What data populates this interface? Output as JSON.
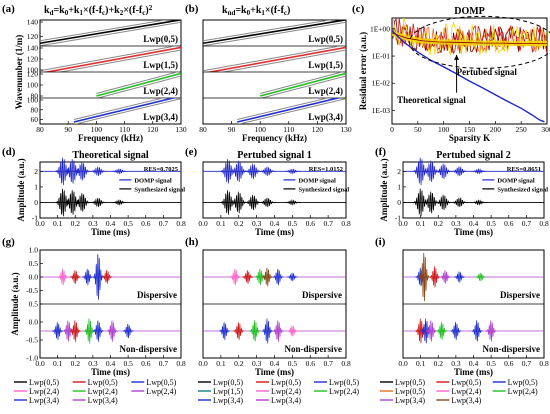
{
  "panel_labels": {
    "a": "(a)",
    "b": "(b)",
    "c": "(c)",
    "d": "(d)",
    "e": "(e)",
    "f": "(f)",
    "g": "(g)",
    "h": "(h)",
    "i": "(i)"
  },
  "colors": {
    "Lwp(0,5)": "#000000",
    "Lwp(1,5)": "#e03030",
    "Lwp(2,4)": "#22c022",
    "Lwp(3,4)": "#2030d0",
    "dispersion_band": "#888888",
    "theoretical_curve": "#2026c8",
    "dashed_ellipse": "#000000",
    "perturbed_band": "#f5d600",
    "residual_orange": "#e07020",
    "residual_darkred": "#8b0000",
    "dispersive_red": "#d01818",
    "dispersive_purple": "#b040d0",
    "dispersive_pink": "#ff66cc",
    "dispersive_brown": "#8b4513",
    "dispersive_teal": "#108080"
  },
  "chart_data": [
    {
      "id": "a",
      "type": "line",
      "title": "k_d=k_0+k_1×(f-f_c)+k_2×(f-f_c)^2",
      "xlabel": "Frequency (kHz)",
      "ylabel": "Wavenumber (1/m)",
      "xlim": [
        80,
        130
      ],
      "xticks": [
        80,
        90,
        100,
        110,
        120,
        130
      ],
      "subplots": [
        {
          "label": "Lwp(0,5)",
          "ylim": [
            110,
            140
          ],
          "yticks": [
            120,
            140
          ],
          "color": "#000000",
          "x": [
            80,
            130
          ],
          "y": [
            111,
            143
          ]
        },
        {
          "label": "Lwp(1,5)",
          "ylim": [
            100,
            140
          ],
          "yticks": [
            100,
            120,
            140
          ],
          "color": "#e03030",
          "x": [
            80,
            130
          ],
          "y": [
            94,
            141
          ]
        },
        {
          "label": "Lwp(2,4)",
          "ylim": [
            80,
            120
          ],
          "yticks": [
            80,
            100,
            120
          ],
          "color": "#22c022",
          "x": [
            100,
            130
          ],
          "y": [
            80,
            121
          ]
        },
        {
          "label": "Lwp(3,4)",
          "ylim": [
            55,
            100
          ],
          "yticks": [
            60,
            80,
            100
          ],
          "color": "#2030d0",
          "x": [
            92,
            130
          ],
          "y": [
            55,
            108
          ]
        }
      ]
    },
    {
      "id": "b",
      "type": "line",
      "title": "k_nd=k_0+k_1×(f-f_c)",
      "xlabel": "Frequency (kHz)",
      "ylabel": "",
      "xlim": [
        80,
        130
      ],
      "xticks": [
        80,
        90,
        100,
        110,
        120,
        130
      ],
      "subplots": [
        {
          "label": "Lwp(0,5)",
          "ylim": [
            110,
            140
          ],
          "color": "#000000",
          "x": [
            80,
            130
          ],
          "y": [
            111,
            143
          ]
        },
        {
          "label": "Lwp(1,5)",
          "ylim": [
            100,
            140
          ],
          "color": "#e03030",
          "x": [
            80,
            130
          ],
          "y": [
            94,
            141
          ]
        },
        {
          "label": "Lwp(2,4)",
          "ylim": [
            80,
            120
          ],
          "color": "#22c022",
          "x": [
            100,
            130
          ],
          "y": [
            80,
            121
          ]
        },
        {
          "label": "Lwp(3,4)",
          "ylim": [
            55,
            100
          ],
          "color": "#2030d0",
          "x": [
            92,
            130
          ],
          "y": [
            55,
            108
          ]
        }
      ]
    },
    {
      "id": "c",
      "type": "line",
      "title": "DOMP",
      "xlabel": "Sparsity K",
      "ylabel": "Residual error (a.u.)",
      "xlim": [
        0,
        300
      ],
      "xticks": [
        0,
        50,
        100,
        150,
        200,
        250,
        300
      ],
      "ylim_log10": [
        -3.5,
        0.4
      ],
      "yticks": [
        "1E+00",
        "1E-01",
        "1E-02",
        "1E-03"
      ],
      "annotations": [
        "Pertubed signal",
        "Theoretical signal"
      ],
      "series": [
        {
          "name": "Theoretical signal",
          "x": [
            0,
            10,
            25,
            50,
            75,
            100,
            125,
            150,
            175,
            200,
            225,
            250,
            270,
            285,
            295
          ],
          "y": [
            0.85,
            0.55,
            0.3,
            0.14,
            0.07,
            0.04,
            0.022,
            0.012,
            0.0068,
            0.0038,
            0.0021,
            0.0012,
            0.0007,
            0.00045,
            0.00038
          ]
        },
        {
          "name": "Pertubed signal",
          "x": [
            0,
            30,
            60,
            90,
            120,
            150,
            180,
            210,
            240,
            270,
            300
          ],
          "y": [
            0.7,
            0.45,
            0.36,
            0.33,
            0.32,
            0.31,
            0.3,
            0.3,
            0.29,
            0.29,
            0.29
          ]
        }
      ]
    },
    {
      "id": "d",
      "type": "line",
      "title": "Theoretical signal",
      "res": "RES=0.7025",
      "legend": [
        "DOMP signal",
        "Synthesized signal"
      ],
      "xlabel": "Time (ms)",
      "ylabel": "Amplitude (a.u.)",
      "xlim": [
        0,
        0.8
      ],
      "xticks": [
        0.0,
        0.1,
        0.2,
        0.3,
        0.4,
        0.5,
        0.6,
        0.7,
        0.8
      ],
      "ylim": [
        -1,
        2.6
      ],
      "yticks": [
        -1,
        0,
        1,
        2
      ],
      "series": [
        {
          "name": "DOMP signal",
          "offset": 2,
          "packets": [
            [
              0.13,
              0.9
            ],
            [
              0.185,
              0.8
            ],
            [
              0.24,
              0.6
            ],
            [
              0.33,
              0.3
            ],
            [
              0.45,
              0.15
            ]
          ]
        },
        {
          "name": "Synthesized signal",
          "offset": 0,
          "packets": [
            [
              0.13,
              0.9
            ],
            [
              0.185,
              0.8
            ],
            [
              0.24,
              0.6
            ],
            [
              0.33,
              0.3
            ],
            [
              0.45,
              0.15
            ]
          ]
        }
      ]
    },
    {
      "id": "e",
      "type": "line",
      "title": "Pertubed signal 1",
      "res": "RES=1.0152",
      "legend": [
        "DOMP signal",
        "Synthesized signal"
      ],
      "xlabel": "Time (ms)",
      "ylabel": "",
      "xlim": [
        0,
        0.8
      ],
      "xticks": [
        0.0,
        0.1,
        0.2,
        0.3,
        0.4,
        0.5,
        0.6,
        0.7,
        0.8
      ],
      "ylim": [
        -1,
        2.6
      ],
      "series": [
        {
          "name": "DOMP signal",
          "offset": 2,
          "packets": [
            [
              0.14,
              0.8
            ],
            [
              0.2,
              0.7
            ],
            [
              0.28,
              0.5
            ],
            [
              0.36,
              0.3
            ],
            [
              0.5,
              0.15
            ]
          ]
        },
        {
          "name": "Synthesized signal",
          "offset": 0,
          "packets": [
            [
              0.14,
              0.8
            ],
            [
              0.2,
              0.7
            ],
            [
              0.28,
              0.5
            ],
            [
              0.36,
              0.3
            ],
            [
              0.5,
              0.15
            ]
          ]
        }
      ]
    },
    {
      "id": "f",
      "type": "line",
      "title": "Pertubed signal 2",
      "res": "RES=0.8651",
      "legend": [
        "DOMP signal",
        "Synthesized signal"
      ],
      "xlabel": "Time (ms)",
      "ylabel": "Amplitude (a.u.)",
      "xlim": [
        0,
        0.8
      ],
      "xticks": [
        0.0,
        0.1,
        0.2,
        0.3,
        0.4,
        0.5,
        0.6,
        0.7,
        0.8
      ],
      "ylim": [
        -1,
        2.6
      ],
      "yticks": [
        -1,
        0,
        1,
        2
      ],
      "series": [
        {
          "name": "DOMP signal",
          "offset": 2,
          "packets": [
            [
              0.1,
              0.9
            ],
            [
              0.16,
              0.7
            ],
            [
              0.23,
              0.5
            ],
            [
              0.32,
              0.3
            ],
            [
              0.43,
              0.15
            ]
          ]
        },
        {
          "name": "Synthesized signal",
          "offset": 0,
          "packets": [
            [
              0.1,
              0.9
            ],
            [
              0.16,
              0.7
            ],
            [
              0.23,
              0.5
            ],
            [
              0.32,
              0.3
            ],
            [
              0.43,
              0.15
            ]
          ]
        }
      ]
    },
    {
      "id": "g",
      "type": "line",
      "labels": [
        "Dispersive",
        "Non-dispersive"
      ],
      "xlabel": "Time (ms)",
      "ylabel": "Amplitude (a.u.)",
      "xlim": [
        0,
        0.8
      ],
      "xticks": [
        0.0,
        0.1,
        0.2,
        0.3,
        0.4,
        0.5,
        0.6,
        0.7,
        0.8
      ],
      "ylim_top": [
        -1.0,
        1.0
      ],
      "ylim_bottom": [
        -1.0,
        0.5
      ],
      "yticks_top": [
        -0.5,
        0.0,
        0.5,
        1.0
      ],
      "yticks_bottom": [
        -1.0,
        -0.5,
        0.0,
        0.5
      ],
      "legend": [
        "Lwp(0,5)",
        "Lwp(0,5)",
        "Lwp(0,5)",
        "Lwp(2,4)",
        "Lwp(2,4)",
        "Lwp(2,4)",
        "Lwp(3,4)",
        "Lwp(3,4)"
      ],
      "legend_colors": [
        "#000000",
        "#d01818",
        "#2030d0",
        "#ff66cc",
        "#22c022",
        "#b040d0",
        "#2030d0",
        "#b040d0"
      ],
      "series": [
        {
          "name": "Dispersive",
          "offset": 0.4,
          "packets": [
            [
              0.13,
              0.3,
              "#ff66cc"
            ],
            [
              0.2,
              0.25,
              "#d01818"
            ],
            [
              0.27,
              0.3,
              "#2030d0"
            ],
            [
              0.33,
              0.9,
              "#2030d0"
            ],
            [
              0.38,
              0.25,
              "#d01818"
            ]
          ]
        },
        {
          "name": "Non-dispersive",
          "offset": -0.3,
          "packets": [
            [
              0.1,
              0.25,
              "#2030d0"
            ],
            [
              0.16,
              0.3,
              "#b040d0"
            ],
            [
              0.2,
              0.3,
              "#d01818"
            ],
            [
              0.28,
              0.35,
              "#22c022"
            ],
            [
              0.33,
              0.3,
              "#2030d0"
            ],
            [
              0.41,
              0.3,
              "#b040d0"
            ],
            [
              0.5,
              0.2,
              "#2030d0"
            ]
          ]
        }
      ]
    },
    {
      "id": "h",
      "type": "line",
      "labels": [
        "Dispersive",
        "Non-dispersive"
      ],
      "xlabel": "Time (ms)",
      "ylabel": "",
      "xlim": [
        0,
        0.8
      ],
      "xticks": [
        0.0,
        0.1,
        0.2,
        0.3,
        0.4,
        0.5,
        0.6,
        0.7,
        0.8
      ],
      "ylim_top": [
        -1.0,
        1.0
      ],
      "ylim_bottom": [
        -1.0,
        0.5
      ],
      "legend": [
        "Lwp(0,5)",
        "Lwp(0,5)",
        "Lwp(0,5)",
        "Lwp(1,5)",
        "Lwp(2,4)",
        "Lwp(2,4)",
        "Lwp(3,4)",
        "Lwp(3,4)"
      ],
      "legend_colors": [
        "#000000",
        "#d01818",
        "#2030d0",
        "#108080",
        "#ff66cc",
        "#22c022",
        "#2030d0",
        "#b040d0"
      ],
      "series": [
        {
          "name": "Dispersive",
          "offset": 0.4,
          "packets": [
            [
              0.18,
              0.3,
              "#ff66cc"
            ],
            [
              0.25,
              0.25,
              "#d01818"
            ],
            [
              0.32,
              0.3,
              "#22c022"
            ],
            [
              0.36,
              0.35,
              "#8b4513"
            ],
            [
              0.42,
              0.3,
              "#2030d0"
            ],
            [
              0.5,
              0.15,
              "#2030d0"
            ]
          ]
        },
        {
          "name": "Non-dispersive",
          "offset": -0.3,
          "packets": [
            [
              0.12,
              0.25,
              "#2030d0"
            ],
            [
              0.2,
              0.25,
              "#d01818"
            ],
            [
              0.29,
              0.3,
              "#22c022"
            ],
            [
              0.36,
              0.35,
              "#2030d0"
            ],
            [
              0.42,
              0.3,
              "#b040d0"
            ],
            [
              0.5,
              0.15,
              "#ff66cc"
            ]
          ]
        }
      ]
    },
    {
      "id": "i",
      "type": "line",
      "labels": [
        "Dispersive",
        "Non-dispersive"
      ],
      "xlabel": "Time (ms)",
      "ylabel": "",
      "xlim": [
        0,
        0.8
      ],
      "xticks": [
        0.0,
        0.1,
        0.2,
        0.3,
        0.4,
        0.5,
        0.6,
        0.7,
        0.8
      ],
      "ylim_top": [
        -1.0,
        1.0
      ],
      "ylim_bottom": [
        -1.0,
        0.5
      ],
      "legend": [
        "Lwp(0,5)",
        "Lwp(0,5)",
        "Lwp(0,5)",
        "Lwp(0,5)",
        "Lwp(2,4)",
        "Lwp(2,4)",
        "Lwp(3,4)",
        "Lwp(3,4)"
      ],
      "legend_colors": [
        "#000000",
        "#d01818",
        "#2030d0",
        "#e07020",
        "#ff66cc",
        "#22c022",
        "#b040d0",
        "#8b4513"
      ],
      "series": [
        {
          "name": "Dispersive",
          "offset": 0.4,
          "packets": [
            [
              0.1,
              0.35,
              "#2030d0"
            ],
            [
              0.12,
              0.95,
              "#8b4513"
            ],
            [
              0.18,
              0.4,
              "#d01818"
            ],
            [
              0.24,
              0.25,
              "#b040d0"
            ],
            [
              0.32,
              0.2,
              "#2030d0"
            ],
            [
              0.44,
              0.15,
              "#22c022"
            ]
          ]
        },
        {
          "name": "Non-dispersive",
          "offset": -0.3,
          "packets": [
            [
              0.1,
              0.35,
              "#d01818"
            ],
            [
              0.13,
              0.35,
              "#2030d0"
            ],
            [
              0.16,
              0.3,
              "#b040d0"
            ],
            [
              0.22,
              0.25,
              "#22c022"
            ],
            [
              0.3,
              0.25,
              "#2030d0"
            ],
            [
              0.42,
              0.3,
              "#2030d0"
            ],
            [
              0.5,
              0.3,
              "#b040d0"
            ]
          ]
        }
      ]
    }
  ]
}
